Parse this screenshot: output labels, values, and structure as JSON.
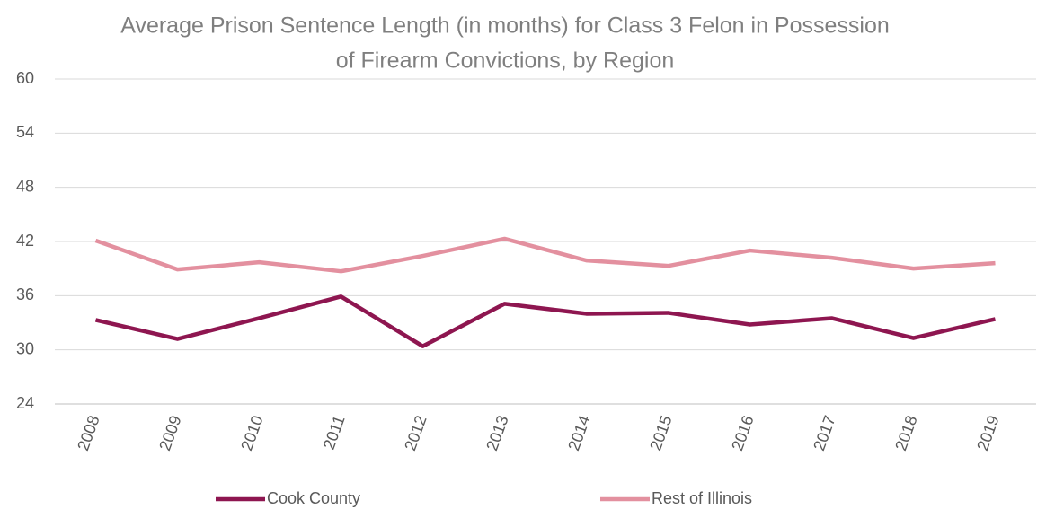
{
  "chart_data": {
    "type": "line",
    "title": [
      "Average Prison Sentence Length (in months) for Class 3 Felon in Possession",
      "of  Firearm Convictions, by Region"
    ],
    "categories": [
      "2008",
      "2009",
      "2010",
      "2011",
      "2012",
      "2013",
      "2014",
      "2015",
      "2016",
      "2017",
      "2018",
      "2019"
    ],
    "series": [
      {
        "name": "Cook County",
        "color": "#8e1650",
        "values": [
          33.3,
          31.2,
          33.5,
          35.9,
          30.4,
          35.1,
          34.0,
          34.1,
          32.8,
          33.5,
          31.3,
          33.4
        ]
      },
      {
        "name": "Rest of Illinois",
        "color": "#e3909f",
        "values": [
          42.1,
          38.9,
          39.7,
          38.7,
          40.4,
          42.3,
          39.9,
          39.3,
          41.0,
          40.2,
          39.0,
          39.6
        ]
      }
    ],
    "ylim": [
      24,
      60
    ],
    "yticks": [
      24,
      30,
      36,
      42,
      48,
      54,
      60
    ],
    "grid": true
  }
}
